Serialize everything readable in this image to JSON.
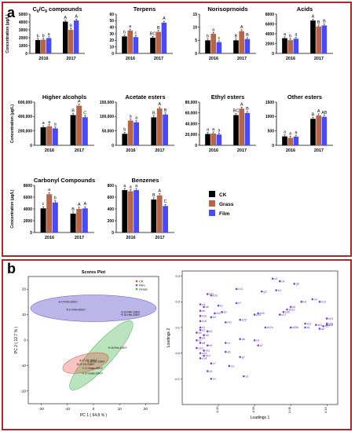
{
  "panel_labels": {
    "a": "a",
    "b": "b"
  },
  "colors": {
    "CK": "#000000",
    "Grass": "#b5654a",
    "Film": "#4a4af0",
    "frame": "#a52a2a"
  },
  "legend": {
    "items": [
      "CK",
      "Grass",
      "Film"
    ]
  },
  "chart_data": [
    {
      "type": "bar",
      "title": "C6/C9 compounds",
      "ylabel": "Concentration (μg/L)",
      "categories": [
        "2016",
        "2017"
      ],
      "ylim": [
        0,
        5000
      ],
      "yticks": [
        "0",
        "1000",
        "2000",
        "3000",
        "4000",
        "5000"
      ],
      "series": [
        {
          "name": "CK",
          "values": [
            1700,
            4050
          ]
        },
        {
          "name": "Grass",
          "values": [
            1750,
            3000
          ]
        },
        {
          "name": "Film",
          "values": [
            1950,
            4200
          ]
        }
      ],
      "letters": [
        [
          "b",
          "b",
          "a"
        ],
        [
          "A",
          "B",
          "A"
        ]
      ]
    },
    {
      "type": "bar",
      "title": "Terpens",
      "categories": [
        "2016",
        "2017"
      ],
      "ylim": [
        0,
        60
      ],
      "yticks": [
        "0",
        "10",
        "20",
        "30",
        "40",
        "50",
        "60"
      ],
      "series": [
        {
          "name": "CK",
          "values": [
            26,
            24
          ]
        },
        {
          "name": "Grass",
          "values": [
            35,
            33
          ]
        },
        {
          "name": "Film",
          "values": [
            25,
            47
          ]
        }
      ],
      "letters": [
        [
          "b",
          "a",
          "c"
        ],
        [
          "BC",
          "B",
          "A"
        ]
      ]
    },
    {
      "type": "bar",
      "title": "Norisoprnoids",
      "categories": [
        "2016",
        "2017"
      ],
      "ylim": [
        0,
        15
      ],
      "yticks": [
        "0",
        "5",
        "10",
        "15"
      ],
      "series": [
        {
          "name": "CK",
          "values": [
            5,
            5
          ]
        },
        {
          "name": "Grass",
          "values": [
            7.5,
            8.5
          ]
        },
        {
          "name": "Film",
          "values": [
            4.3,
            5.5
          ]
        }
      ],
      "letters": [
        [
          "b",
          "a",
          "c"
        ],
        [
          "B",
          "A",
          "B"
        ]
      ]
    },
    {
      "type": "bar",
      "title": "Acids",
      "categories": [
        "2016",
        "2017"
      ],
      "ylim": [
        0,
        8000
      ],
      "yticks": [
        "0",
        "2000",
        "4000",
        "6000",
        "8000"
      ],
      "series": [
        {
          "name": "CK",
          "values": [
            3100,
            6700
          ]
        },
        {
          "name": "Grass",
          "values": [
            2700,
            5500
          ]
        },
        {
          "name": "Film",
          "values": [
            3000,
            5700
          ]
        }
      ],
      "letters": [
        [
          "a",
          "b",
          "a"
        ],
        [
          "A",
          "B",
          "B"
        ]
      ]
    },
    {
      "type": "bar",
      "title": "Higher alcohols",
      "ylabel": "Concentration (μg/L)",
      "categories": [
        "2016",
        "2017"
      ],
      "ylim": [
        0,
        600000
      ],
      "yticks": [
        "0",
        "200,000",
        "400,000",
        "600,000"
      ],
      "series": [
        {
          "name": "CK",
          "values": [
            250000,
            420000
          ]
        },
        {
          "name": "Grass",
          "values": [
            265000,
            550000
          ]
        },
        {
          "name": "Film",
          "values": [
            235000,
            390000
          ]
        }
      ],
      "letters": [
        [
          "a",
          "a",
          "a"
        ],
        [
          "B",
          "A",
          "C"
        ]
      ]
    },
    {
      "type": "bar",
      "title": "Acetate esters",
      "categories": [
        "2016",
        "2017"
      ],
      "ylim": [
        0,
        150000
      ],
      "yticks": [
        "0",
        "50,000",
        "100,000",
        "150,000"
      ],
      "series": [
        {
          "name": "CK",
          "values": [
            40000,
            97000
          ]
        },
        {
          "name": "Grass",
          "values": [
            86000,
            128000
          ]
        },
        {
          "name": "Film",
          "values": [
            80000,
            107000
          ]
        }
      ],
      "letters": [
        [
          "b",
          "a",
          "a"
        ],
        [
          "B",
          "A",
          "B"
        ]
      ]
    },
    {
      "type": "bar",
      "title": "Ethyl esters",
      "categories": [
        "2016",
        "2017"
      ],
      "ylim": [
        0,
        80000
      ],
      "yticks": [
        "0",
        "20,000",
        "40,000",
        "60,000",
        "80,000"
      ],
      "series": [
        {
          "name": "CK",
          "values": [
            21000,
            56000
          ]
        },
        {
          "name": "Grass",
          "values": [
            22000,
            68000
          ]
        },
        {
          "name": "Film",
          "values": [
            20000,
            60000
          ]
        }
      ],
      "letters": [
        [
          "a",
          "a",
          "a"
        ],
        [
          "BC",
          "A",
          "B"
        ]
      ]
    },
    {
      "type": "bar",
      "title": "Other esters",
      "categories": [
        "2016",
        "2017"
      ],
      "ylim": [
        0,
        1500
      ],
      "yticks": [
        "0",
        "500",
        "1000",
        "1500"
      ],
      "series": [
        {
          "name": "CK",
          "values": [
            310,
            920
          ]
        },
        {
          "name": "Grass",
          "values": [
            260,
            1040
          ]
        },
        {
          "name": "Film",
          "values": [
            300,
            990
          ]
        }
      ],
      "letters": [
        [
          "a",
          "a",
          "a"
        ],
        [
          "B",
          "A",
          "AB"
        ]
      ]
    },
    {
      "type": "bar",
      "title": "Carbonyl Compounds",
      "ylabel": "Concentration (μg/L)",
      "categories": [
        "2016",
        "2017"
      ],
      "ylim": [
        0,
        8000
      ],
      "yticks": [
        "0",
        "2000",
        "4000",
        "6000",
        "8000"
      ],
      "series": [
        {
          "name": "CK",
          "values": [
            4100,
            3200
          ]
        },
        {
          "name": "Grass",
          "values": [
            6500,
            4000
          ]
        },
        {
          "name": "Film",
          "values": [
            5100,
            4100
          ]
        }
      ],
      "letters": [
        [
          "c",
          "a",
          "b"
        ],
        [
          "B",
          "A",
          "A"
        ]
      ]
    },
    {
      "type": "bar",
      "title": "Benzenes",
      "categories": [
        "2016",
        "2017"
      ],
      "ylim": [
        0,
        800
      ],
      "yticks": [
        "0",
        "200",
        "400",
        "600",
        "800"
      ],
      "series": [
        {
          "name": "CK",
          "values": [
            720,
            560
          ]
        },
        {
          "name": "Grass",
          "values": [
            700,
            630
          ]
        },
        {
          "name": "Film",
          "values": [
            720,
            450
          ]
        }
      ],
      "letters": [
        [
          "a",
          "a",
          "a"
        ],
        [
          "B",
          "A",
          "C"
        ]
      ]
    },
    {
      "type": "scatter",
      "title": "Scores Plot",
      "xlabel": "PC 1 ( 64.8 % )",
      "ylabel": "PC 2 ( 12.7 % )",
      "xlim": [
        -25,
        25
      ],
      "ylim": [
        -25,
        25
      ],
      "xticks": [
        "-20",
        "-10",
        "0",
        "10",
        "20"
      ],
      "yticks": [
        "-20",
        "-10",
        "0",
        "10",
        "20"
      ],
      "legend": [
        "CK",
        "Film",
        "Grass"
      ],
      "series": [
        {
          "name": "Film",
          "color": "#6a5acd",
          "points": [
            {
              "label": "17-Film-1/06.F",
              "x": -13,
              "y": 15
            },
            {
              "label": "17-Film-3/06.F",
              "x": -10,
              "y": 12
            },
            {
              "label": "16-Film-1/06.F",
              "x": 11,
              "y": 11
            },
            {
              "label": "16-Film-2/06.F",
              "x": 11,
              "y": 10
            }
          ]
        },
        {
          "name": "CK",
          "color": "#d9443a",
          "points": [
            {
              "label": "17-CK-1/06.F",
              "x": -5,
              "y": -8
            },
            {
              "label": "17-CK-2/06.F",
              "x": -6,
              "y": -9.5
            },
            {
              "label": "16-CK-1/06.F",
              "x": -2,
              "y": -8.5
            }
          ]
        },
        {
          "name": "Grass",
          "color": "#3cb043",
          "points": [
            {
              "label": "16-Film-1/06.F",
              "x": 6,
              "y": -3
            },
            {
              "label": "17-Grass-3/06.F",
              "x": -4,
              "y": -11
            },
            {
              "label": "17-Grass-1/06.F",
              "x": -4,
              "y": -13
            }
          ]
        }
      ]
    },
    {
      "type": "scatter",
      "title": "",
      "xlabel": "Loadings 1",
      "ylabel": "Loadings 2",
      "xlim": [
        -0.25,
        0.18
      ],
      "ylim": [
        -0.2,
        0.32
      ],
      "xticks": [
        "-0.15",
        "-0.05",
        "0.05",
        "0.15"
      ],
      "yticks": [
        "-0.1",
        "0.0",
        "0.1",
        "0.2",
        "0.3"
      ],
      "points": [
        {
          "label": "c2",
          "x": 0.0,
          "y": 0.29
        },
        {
          "label": "c4",
          "x": 0.02,
          "y": 0.28
        },
        {
          "label": "g5",
          "x": 0.06,
          "y": 0.27
        },
        {
          "label": "k13",
          "x": -0.1,
          "y": 0.25
        },
        {
          "label": "k3",
          "x": 0.01,
          "y": 0.245
        },
        {
          "label": "g3",
          "x": -0.03,
          "y": 0.24
        },
        {
          "label": "k21",
          "x": -0.18,
          "y": 0.23
        },
        {
          "label": "k20",
          "x": -0.17,
          "y": 0.225
        },
        {
          "label": "s4",
          "x": 0.11,
          "y": 0.21
        },
        {
          "label": "k19",
          "x": 0.13,
          "y": 0.2
        },
        {
          "label": "k4",
          "x": 0.08,
          "y": 0.2
        },
        {
          "label": "n4",
          "x": -0.2,
          "y": 0.19
        },
        {
          "label": "k7",
          "x": -0.1,
          "y": 0.195
        },
        {
          "label": "k1",
          "x": -0.15,
          "y": 0.185
        },
        {
          "label": "k8",
          "x": -0.19,
          "y": 0.18
        },
        {
          "label": "k5",
          "x": 0.05,
          "y": 0.18
        },
        {
          "label": "k21b",
          "x": 0.04,
          "y": 0.17
        },
        {
          "label": "k6",
          "x": -0.2,
          "y": 0.165
        },
        {
          "label": "k2",
          "x": -0.14,
          "y": 0.16
        },
        {
          "label": "k3b",
          "x": 0.03,
          "y": 0.16
        },
        {
          "label": "k10",
          "x": -0.16,
          "y": 0.155
        },
        {
          "label": "k14",
          "x": -0.05,
          "y": 0.15
        },
        {
          "label": "k18",
          "x": -0.04,
          "y": 0.155
        },
        {
          "label": "k17",
          "x": 0.02,
          "y": 0.15
        },
        {
          "label": "k15",
          "x": -0.2,
          "y": 0.145
        },
        {
          "label": "k9",
          "x": -0.17,
          "y": 0.14
        },
        {
          "label": "k25",
          "x": -0.09,
          "y": 0.13
        },
        {
          "label": "k23",
          "x": 0.15,
          "y": 0.135
        },
        {
          "label": "k16",
          "x": -0.2,
          "y": 0.125
        },
        {
          "label": "k11",
          "x": -0.13,
          "y": 0.12
        },
        {
          "label": "k12",
          "x": 0.09,
          "y": 0.115
        },
        {
          "label": "k24",
          "x": 0.15,
          "y": 0.115
        },
        {
          "label": "k22",
          "x": 0.12,
          "y": 0.11
        },
        {
          "label": "k26",
          "x": 0.15,
          "y": 0.11
        },
        {
          "label": "k27",
          "x": 0.14,
          "y": 0.105
        },
        {
          "label": "e1",
          "x": -0.2,
          "y": 0.1
        },
        {
          "label": "e2",
          "x": -0.2,
          "y": 0.09
        },
        {
          "label": "e3",
          "x": -0.18,
          "y": 0.085
        },
        {
          "label": "e4",
          "x": -0.21,
          "y": 0.08
        },
        {
          "label": "e5",
          "x": -0.19,
          "y": 0.07
        },
        {
          "label": "e6",
          "x": -0.2,
          "y": 0.06
        },
        {
          "label": "k11b",
          "x": -0.02,
          "y": 0.1
        },
        {
          "label": "k25b",
          "x": 0.05,
          "y": 0.1
        },
        {
          "label": "a1",
          "x": 0.09,
          "y": 0.1
        },
        {
          "label": "a2",
          "x": 0.13,
          "y": 0.095
        },
        {
          "label": "e7",
          "x": -0.21,
          "y": 0.05
        },
        {
          "label": "e8",
          "x": -0.2,
          "y": 0.04
        },
        {
          "label": "e9",
          "x": -0.18,
          "y": 0.03
        },
        {
          "label": "c1",
          "x": -0.13,
          "y": 0.04
        },
        {
          "label": "a6",
          "x": -0.09,
          "y": 0.055
        },
        {
          "label": "n3",
          "x": -0.05,
          "y": 0.05
        },
        {
          "label": "a7",
          "x": -0.04,
          "y": 0.03
        },
        {
          "label": "e10",
          "x": -0.21,
          "y": 0.02
        },
        {
          "label": "e11",
          "x": -0.19,
          "y": 0.01
        },
        {
          "label": "e12",
          "x": -0.2,
          "y": 0.0
        },
        {
          "label": "a5",
          "x": -0.13,
          "y": 0.005
        },
        {
          "label": "e13",
          "x": -0.19,
          "y": -0.01
        },
        {
          "label": "g7",
          "x": -0.09,
          "y": -0.015
        },
        {
          "label": "e14",
          "x": -0.2,
          "y": -0.02
        },
        {
          "label": "c7",
          "x": -0.17,
          "y": -0.04
        },
        {
          "label": "c3",
          "x": -0.12,
          "y": -0.05
        },
        {
          "label": "c5",
          "x": -0.18,
          "y": -0.07
        },
        {
          "label": "n1",
          "x": -0.17,
          "y": -0.1
        },
        {
          "label": "c6",
          "x": -0.08,
          "y": -0.09
        }
      ]
    }
  ]
}
